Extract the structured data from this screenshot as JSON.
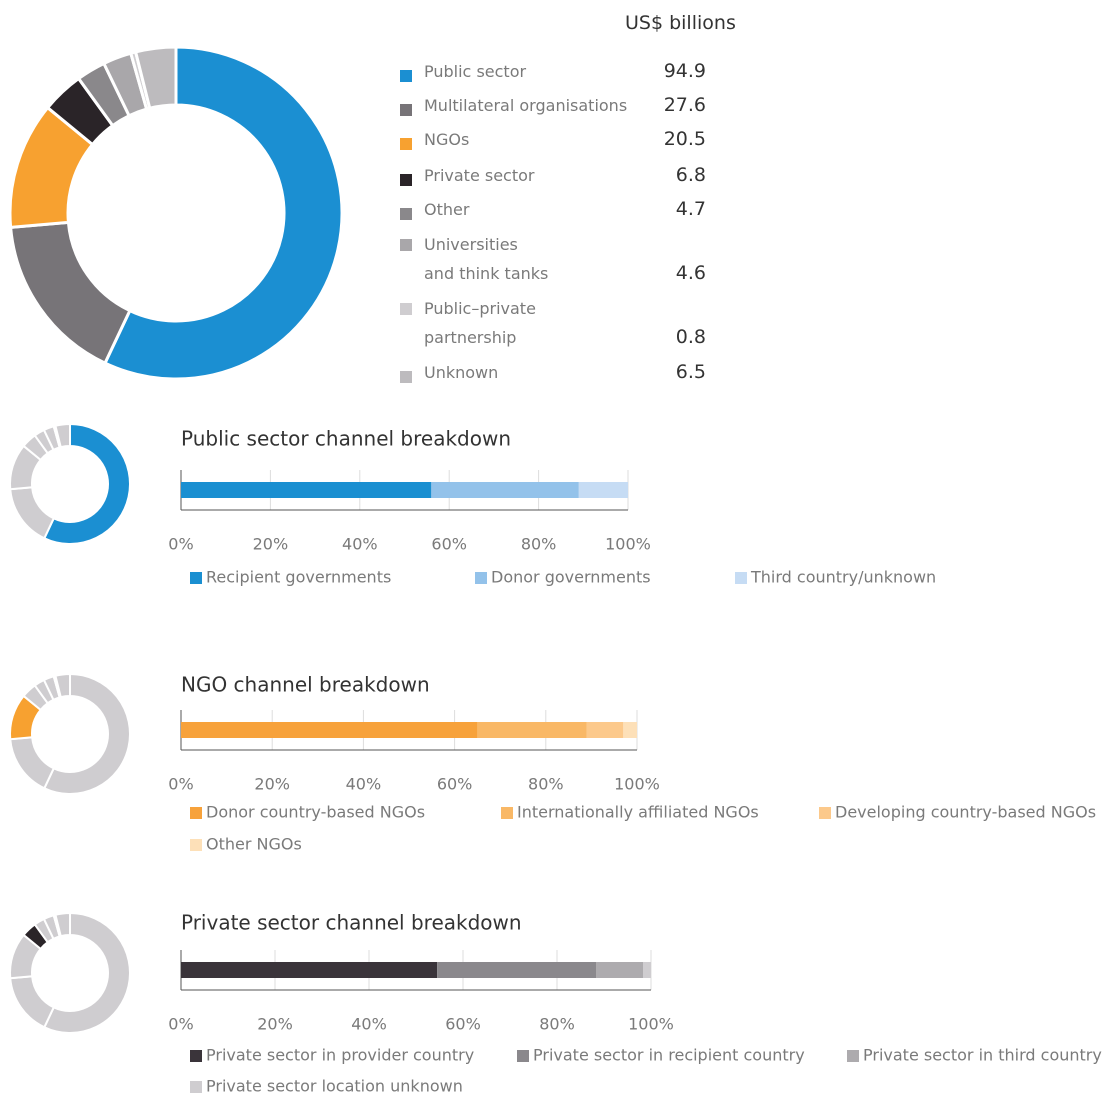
{
  "chart_data": [
    {
      "type": "pie",
      "donut": true,
      "title": "US$ billions",
      "categories": [
        "Public sector",
        "Multilateral organisations",
        "NGOs",
        "Private sector",
        "Other",
        "Universities\nand think tanks",
        "Public–private\npartnership",
        "Unknown"
      ],
      "values": [
        94.9,
        27.6,
        20.5,
        6.8,
        4.7,
        4.6,
        0.8,
        6.5
      ],
      "colors": [
        "#1b8fd2",
        "#777478",
        "#f7a130",
        "#2a2428",
        "#8a888b",
        "#a9a7aa",
        "#cfcdd0",
        "#bdbbbe"
      ]
    },
    {
      "type": "stacked_bar",
      "title": "Public sector channel breakdown",
      "highlight": 0,
      "series": [
        {
          "name": "Recipient governments",
          "color": "#1a8fd1",
          "values": [
            56
          ]
        },
        {
          "name": "Donor governments",
          "color": "#93c2ea",
          "values": [
            33
          ]
        },
        {
          "name": "Third country/unknown",
          "color": "#c6dcf4",
          "values": [
            11
          ]
        }
      ],
      "xlim": [
        0,
        100
      ],
      "xticks": [
        {
          "value": 0,
          "label": "0%"
        },
        {
          "value": 20,
          "label": "20%"
        },
        {
          "value": 40,
          "label": "40%"
        },
        {
          "value": 60,
          "label": "60%"
        },
        {
          "value": 80,
          "label": "80%"
        },
        {
          "value": 100,
          "label": "100%"
        }
      ]
    },
    {
      "type": "stacked_bar",
      "title": "NGO channel breakdown",
      "highlight": 2,
      "series": [
        {
          "name": "Donor country-based NGOs",
          "color": "#f7a23b",
          "values": [
            65
          ]
        },
        {
          "name": "Internationally affiliated NGOs",
          "color": "#f9b866",
          "values": [
            24
          ]
        },
        {
          "name": "Developing country-based NGOs",
          "color": "#fcc98b",
          "values": [
            8
          ]
        },
        {
          "name": "Other NGOs",
          "color": "#fde0b8",
          "values": [
            3
          ]
        }
      ],
      "xlim": [
        0,
        100
      ],
      "xticks": [
        {
          "value": 0,
          "label": "0%"
        },
        {
          "value": 20,
          "label": "20%"
        },
        {
          "value": 40,
          "label": "40%"
        },
        {
          "value": 60,
          "label": "60%"
        },
        {
          "value": 80,
          "label": "80%"
        },
        {
          "value": 100,
          "label": "100%"
        }
      ]
    },
    {
      "type": "stacked_bar",
      "title": "Private sector channel breakdown",
      "highlight": 3,
      "series": [
        {
          "name": "Private sector in provider country",
          "color": "#3a343a",
          "values": [
            54.5
          ]
        },
        {
          "name": "Private sector in recipient country",
          "color": "#8a888c",
          "values": [
            33.8
          ]
        },
        {
          "name": "Private sector in third country",
          "color": "#adabae",
          "values": [
            10
          ]
        },
        {
          "name": "Private sector location unknown",
          "color": "#cfcdd0",
          "values": [
            1.7
          ]
        }
      ],
      "xlim": [
        0,
        100
      ],
      "xticks": [
        {
          "value": 0,
          "label": "0%"
        },
        {
          "value": 20,
          "label": "20%"
        },
        {
          "value": 40,
          "label": "40%"
        },
        {
          "value": 60,
          "label": "60%"
        },
        {
          "value": 80,
          "label": "80%"
        },
        {
          "value": 100,
          "label": "100%"
        }
      ]
    }
  ]
}
